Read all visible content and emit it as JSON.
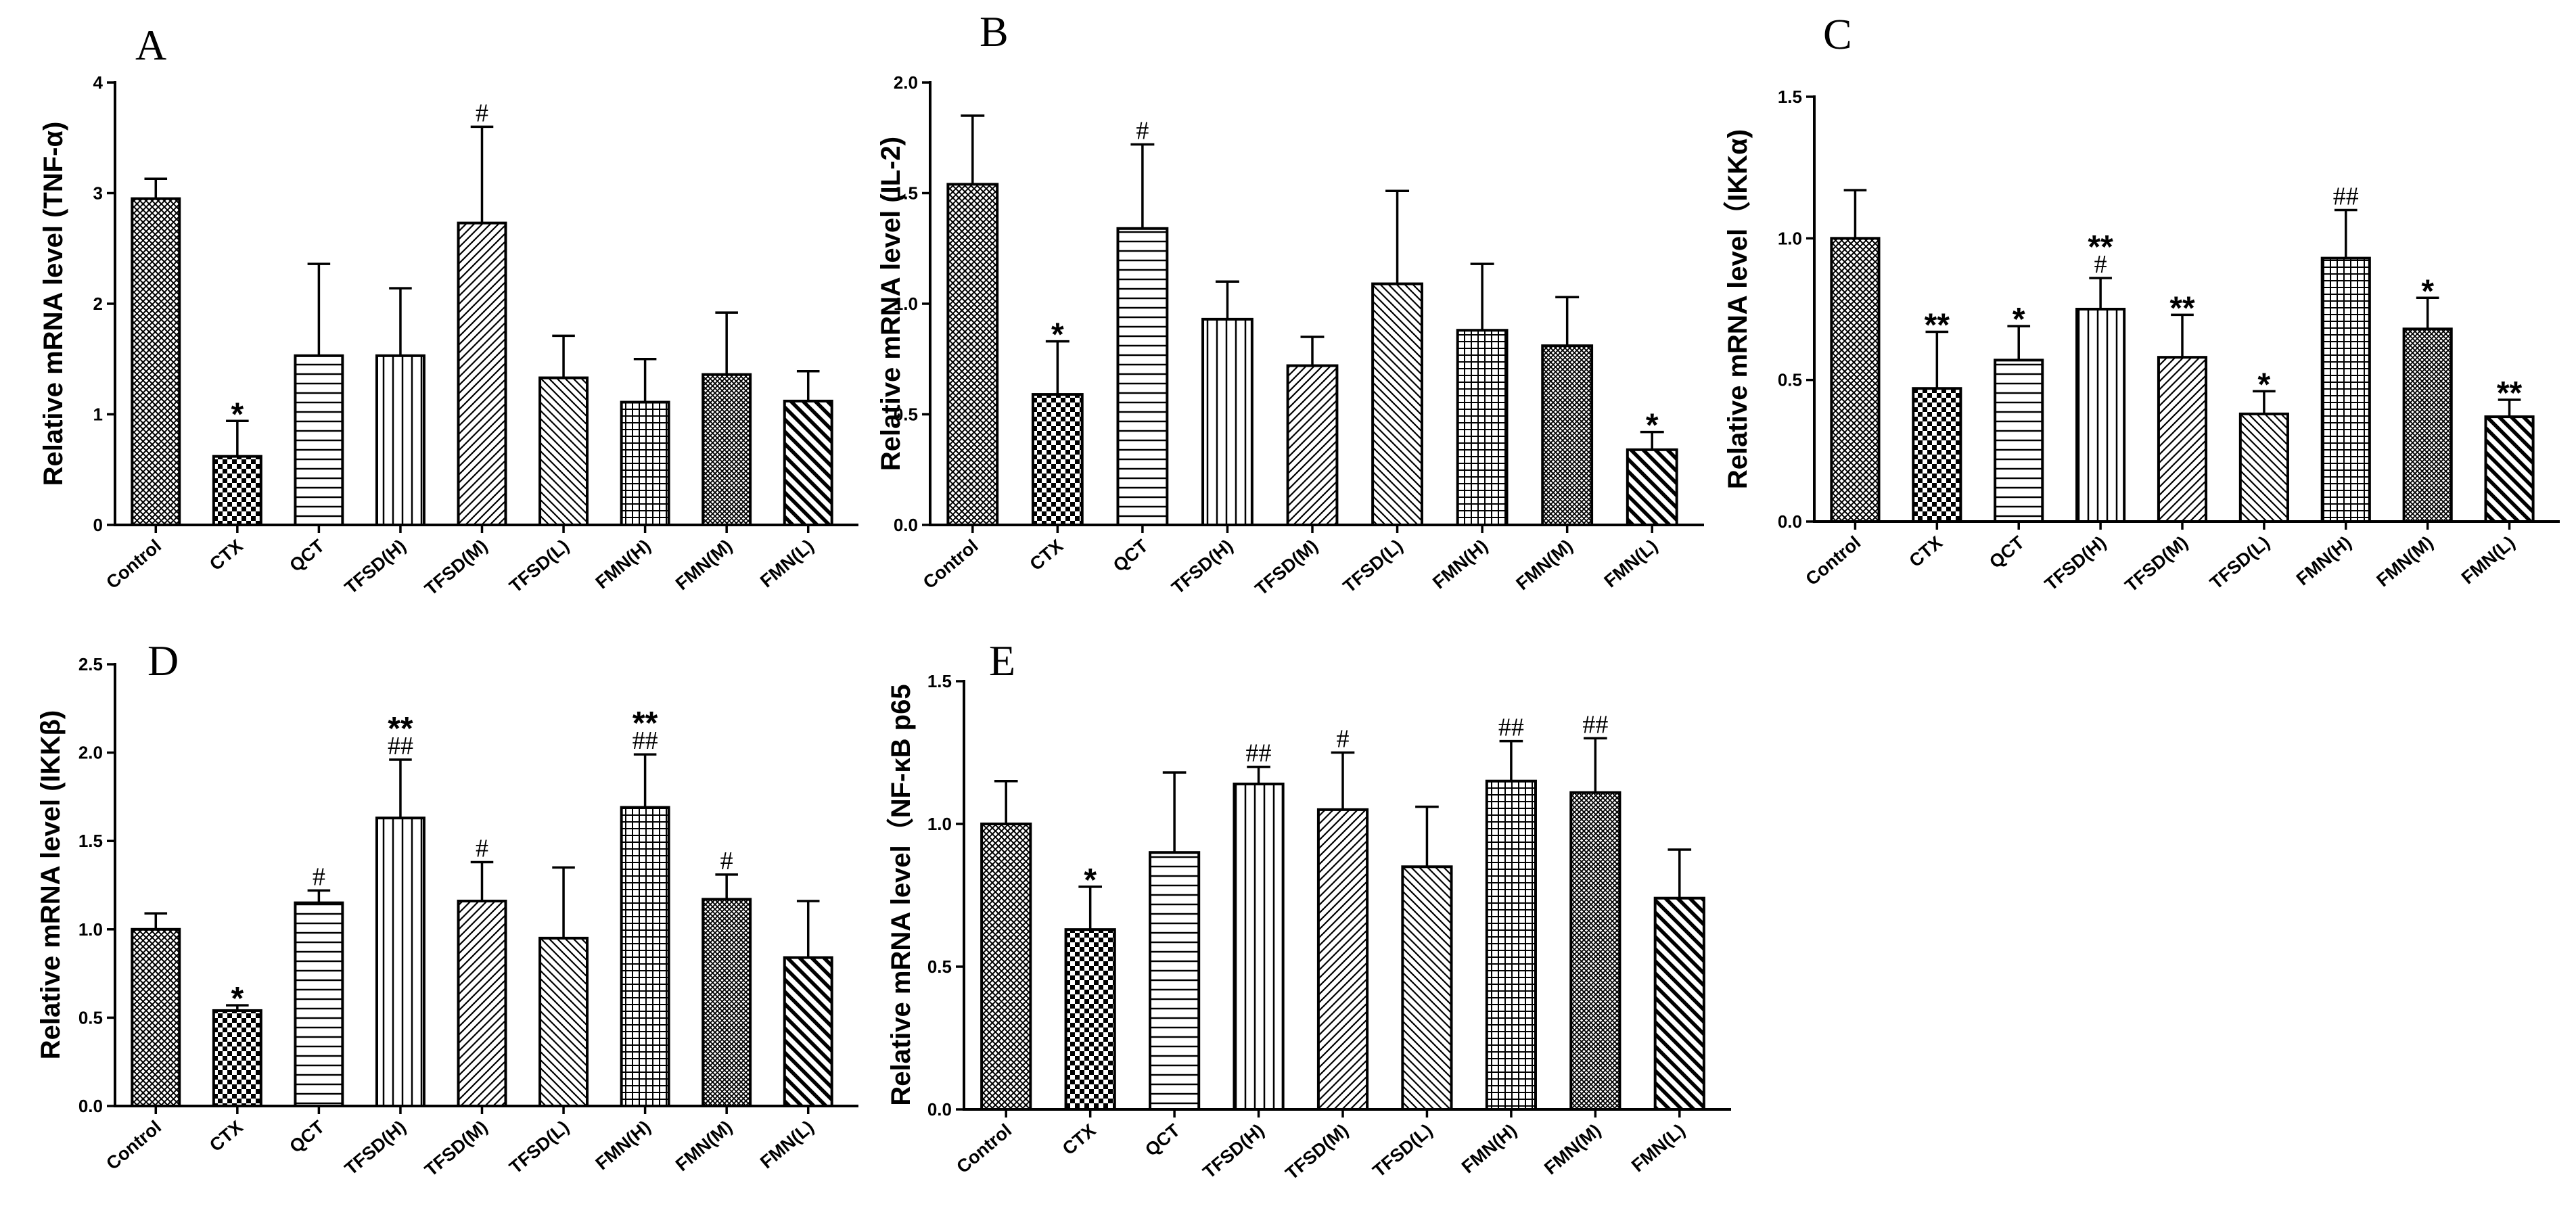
{
  "categories": [
    "Control",
    "CTX",
    "QCT",
    "TFSD(H)",
    "TFSD(M)",
    "TFSD(L)",
    "FMN(H)",
    "FMN(M)",
    "FMN(L)"
  ],
  "chart_data": [
    {
      "panel": "A",
      "type": "bar",
      "ylabel": "Relative mRNA level (TNF-α)",
      "ylim": [
        0,
        4
      ],
      "yticks": [
        "0",
        "1",
        "2",
        "3",
        "4"
      ],
      "values": [
        2.95,
        0.62,
        1.53,
        1.53,
        2.73,
        1.33,
        1.11,
        1.36,
        1.12
      ],
      "errors": [
        0.18,
        0.32,
        0.83,
        0.61,
        0.87,
        0.38,
        0.39,
        0.56,
        0.27
      ],
      "annotations": [
        {
          "index": 1,
          "stars": "*",
          "hashes": ""
        },
        {
          "index": 4,
          "stars": "",
          "hashes": "#"
        }
      ]
    },
    {
      "panel": "B",
      "type": "bar",
      "ylabel": "Relative mRNA level (IL-2)",
      "ylim": [
        0,
        2.0
      ],
      "yticks": [
        "0.0",
        "0.5",
        "1.0",
        "1.5",
        "2.0"
      ],
      "values": [
        1.54,
        0.59,
        1.34,
        0.93,
        0.72,
        1.09,
        0.88,
        0.81,
        0.34
      ],
      "errors": [
        0.31,
        0.24,
        0.38,
        0.17,
        0.13,
        0.42,
        0.3,
        0.22,
        0.08
      ],
      "annotations": [
        {
          "index": 1,
          "stars": "*",
          "hashes": ""
        },
        {
          "index": 2,
          "stars": "",
          "hashes": "#"
        },
        {
          "index": 8,
          "stars": "*",
          "hashes": ""
        }
      ]
    },
    {
      "panel": "C",
      "type": "bar",
      "ylabel": "Relative mRNA level（IKKα)",
      "ylim": [
        0,
        1.5
      ],
      "yticks": [
        "0.0",
        "0.5",
        "1.0",
        "1.5"
      ],
      "values": [
        1.0,
        0.47,
        0.57,
        0.75,
        0.58,
        0.38,
        0.93,
        0.68,
        0.37
      ],
      "errors": [
        0.17,
        0.2,
        0.12,
        0.11,
        0.15,
        0.08,
        0.17,
        0.11,
        0.06
      ],
      "annotations": [
        {
          "index": 1,
          "stars": "**",
          "hashes": ""
        },
        {
          "index": 2,
          "stars": "*",
          "hashes": ""
        },
        {
          "index": 3,
          "stars": "**",
          "hashes": "#"
        },
        {
          "index": 4,
          "stars": "**",
          "hashes": ""
        },
        {
          "index": 5,
          "stars": "*",
          "hashes": ""
        },
        {
          "index": 6,
          "stars": "",
          "hashes": "##"
        },
        {
          "index": 7,
          "stars": "*",
          "hashes": ""
        },
        {
          "index": 8,
          "stars": "**",
          "hashes": ""
        }
      ]
    },
    {
      "panel": "D",
      "type": "bar",
      "ylabel": "Relative mRNA level (IKKβ)",
      "ylim": [
        0,
        2.5
      ],
      "yticks": [
        "0.0",
        "0.5",
        "1.0",
        "1.5",
        "2.0",
        "2.5"
      ],
      "values": [
        1.0,
        0.54,
        1.15,
        1.63,
        1.16,
        0.95,
        1.69,
        1.17,
        0.84
      ],
      "errors": [
        0.09,
        0.03,
        0.07,
        0.33,
        0.22,
        0.4,
        0.3,
        0.14,
        0.32
      ],
      "annotations": [
        {
          "index": 1,
          "stars": "*",
          "hashes": ""
        },
        {
          "index": 2,
          "stars": "",
          "hashes": "#"
        },
        {
          "index": 3,
          "stars": "**",
          "hashes": "##"
        },
        {
          "index": 4,
          "stars": "",
          "hashes": "#"
        },
        {
          "index": 6,
          "stars": "**",
          "hashes": "##"
        },
        {
          "index": 7,
          "stars": "",
          "hashes": "#"
        }
      ]
    },
    {
      "panel": "E",
      "type": "bar",
      "ylabel": "Relative mRNA level（NF-κB p65",
      "ylim": [
        0,
        1.5
      ],
      "yticks": [
        "0.0",
        "0.5",
        "1.0",
        "1.5"
      ],
      "values": [
        1.0,
        0.63,
        0.9,
        1.14,
        1.05,
        0.85,
        1.15,
        1.11,
        0.74
      ],
      "errors": [
        0.15,
        0.15,
        0.28,
        0.06,
        0.2,
        0.21,
        0.14,
        0.19,
        0.17
      ],
      "annotations": [
        {
          "index": 1,
          "stars": "*",
          "hashes": ""
        },
        {
          "index": 3,
          "stars": "",
          "hashes": "##"
        },
        {
          "index": 4,
          "stars": "",
          "hashes": "#"
        },
        {
          "index": 6,
          "stars": "",
          "hashes": "##"
        },
        {
          "index": 7,
          "stars": "",
          "hashes": "##"
        }
      ]
    }
  ]
}
